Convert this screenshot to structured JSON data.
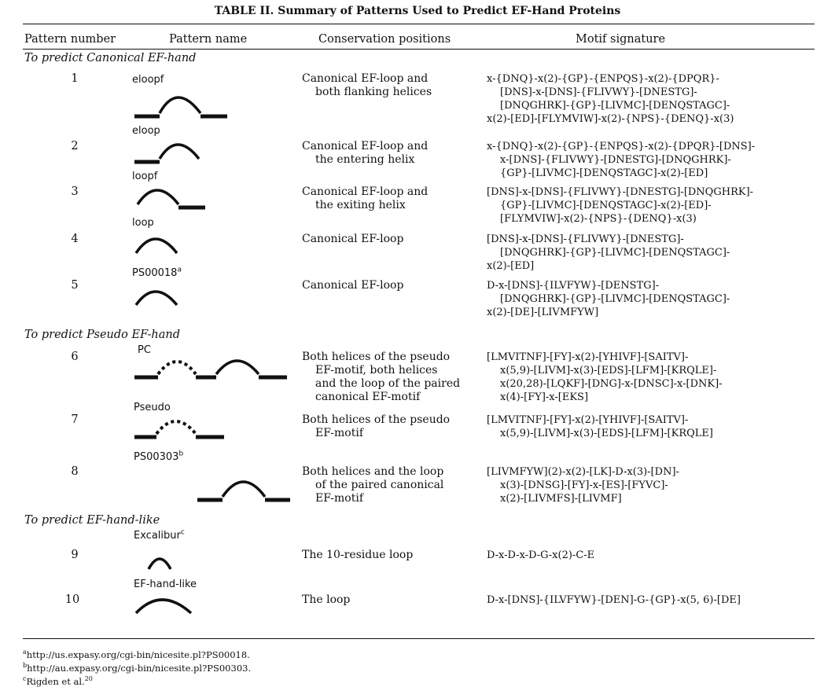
{
  "table": {
    "title": "TABLE II. Summary of Patterns Used to Predict EF-Hand Proteins",
    "headers": [
      "Pattern number",
      "Pattern name",
      "Conservation positions",
      "Motif signature"
    ],
    "sections": [
      "To predict Canonical EF-hand",
      "To predict Pseudo EF-hand",
      "To predict EF-hand-like"
    ],
    "rows": [
      {
        "number": "1",
        "name": "eloopf",
        "sup": "",
        "glyph": "loop-both-helices",
        "conservation": [
          "Canonical EF-loop and",
          "both flanking helices"
        ],
        "motif": [
          "x-{DNQ}-x(2)-{GP}-{ENPQS}-x(2)-{DPQR}-",
          "[DNS]-x-[DNS]-{FLIVWY}-[DNESTG]-",
          "[DNQGHRK]-{GP}-[LIVMC]-[DENQSTAGC]-",
          "x(2)-[ED]-[FLYMVIW]-x(2)-{NPS}-{DENQ}-x(3)"
        ]
      },
      {
        "number": "2",
        "name": "eloop",
        "sup": "",
        "glyph": "loop-entering-helix",
        "conservation": [
          "Canonical EF-loop and",
          "the entering helix"
        ],
        "motif": [
          "x-{DNQ}-x(2)-{GP}-{ENPQS}-x(2)-{DPQR}-[DNS]-",
          "x-[DNS]-{FLIVWY}-[DNESTG]-[DNQGHRK]-",
          "{GP}-[LIVMC]-[DENQSTAGC]-x(2)-[ED]"
        ]
      },
      {
        "number": "3",
        "name": "loopf",
        "sup": "",
        "glyph": "loop-exiting-helix",
        "conservation": [
          "Canonical EF-loop and",
          "the exiting helix"
        ],
        "motif": [
          "[DNS]-x-[DNS]-{FLIVWY}-[DNESTG]-[DNQGHRK]-",
          "{GP}-[LIVMC]-[DENQSTAGC]-x(2)-[ED]-",
          "[FLYMVIW]-x(2)-{NPS}-{DENQ}-x(3)"
        ]
      },
      {
        "number": "4",
        "name": "loop",
        "sup": "",
        "glyph": "loop-only",
        "conservation": [
          "Canonical EF-loop"
        ],
        "motif": [
          "[DNS]-x-[DNS]-{FLIVWY}-[DNESTG]-",
          "[DNQGHRK]-{GP}-[LIVMC]-[DENQSTAGC]-",
          "x(2)-[ED]"
        ]
      },
      {
        "number": "5",
        "name": "PS00018",
        "sup": "a",
        "glyph": "loop-only",
        "conservation": [
          "Canonical EF-loop"
        ],
        "motif": [
          "D-x-[DNS]-{ILVFYW}-[DENSTG]-",
          "[DNQGHRK]-{GP}-[LIVMC]-[DENQSTAGC]-",
          "x(2)-[DE]-[LIVMFYW]"
        ]
      },
      {
        "number": "6",
        "name": "PC",
        "sup": "",
        "glyph": "pseudo-plus-canonical",
        "conservation": [
          "Both helices of the pseudo",
          "EF-motif, both helices",
          "and the loop of the paired",
          "canonical EF-motif"
        ],
        "motif": [
          "[LMVITNF]-[FY]-x(2)-[YHIVF]-[SAITV]-",
          "x(5,9)-[LIVM]-x(3)-[EDS]-[LFM]-[KRQLE]-",
          "x(20,28)-[LQKF]-[DNG]-x-[DNSC]-x-[DNK]-",
          "x(4)-[FY]-x-[EKS]"
        ]
      },
      {
        "number": "7",
        "name": "Pseudo",
        "sup": "",
        "glyph": "pseudo-loop",
        "conservation": [
          "Both helices of the pseudo",
          "EF-motif"
        ],
        "motif": [
          "[LMVITNF]-[FY]-x(2)-[YHIVF]-[SAITV]-",
          "x(5,9)-[LIVM]-x(3)-[EDS]-[LFM]-[KRQLE]"
        ]
      },
      {
        "number": "8",
        "name": "PS00303",
        "sup": "b",
        "glyph": "paired-canonical",
        "conservation": [
          "Both helices and the loop",
          "of the paired canonical",
          "EF-motif"
        ],
        "motif": [
          "[LIVMFYW](2)-x(2)-[LK]-D-x(3)-[DN]-",
          "x(3)-[DNSG]-[FY]-x-[ES]-[FYVC]-",
          "x(2)-[LIVMFS]-[LIVMF]"
        ]
      },
      {
        "number": "9",
        "name": "Excalibur",
        "sup": "c",
        "glyph": "short-loop",
        "conservation": [
          "The 10-residue loop"
        ],
        "motif": [
          "D-x-D-x-D-G-x(2)-C-E"
        ]
      },
      {
        "number": "10",
        "name": "EF-hand-like",
        "sup": "",
        "glyph": "wide-loop",
        "conservation": [
          "The loop"
        ],
        "motif": [
          "D-x-[DNS]-{ILVFYW}-[DEN]-G-{GP}-x(5, 6)-[DE]"
        ]
      }
    ]
  },
  "footnotes": [
    {
      "mark": "a",
      "text": "http://us.expasy.org/cgi-bin/nicesite.pl?PS00018."
    },
    {
      "mark": "b",
      "text": "http://au.expasy.org/cgi-bin/nicesite.pl?PS00303."
    },
    {
      "mark": "c",
      "text": "Rigden et al.",
      "ref": "20"
    }
  ]
}
